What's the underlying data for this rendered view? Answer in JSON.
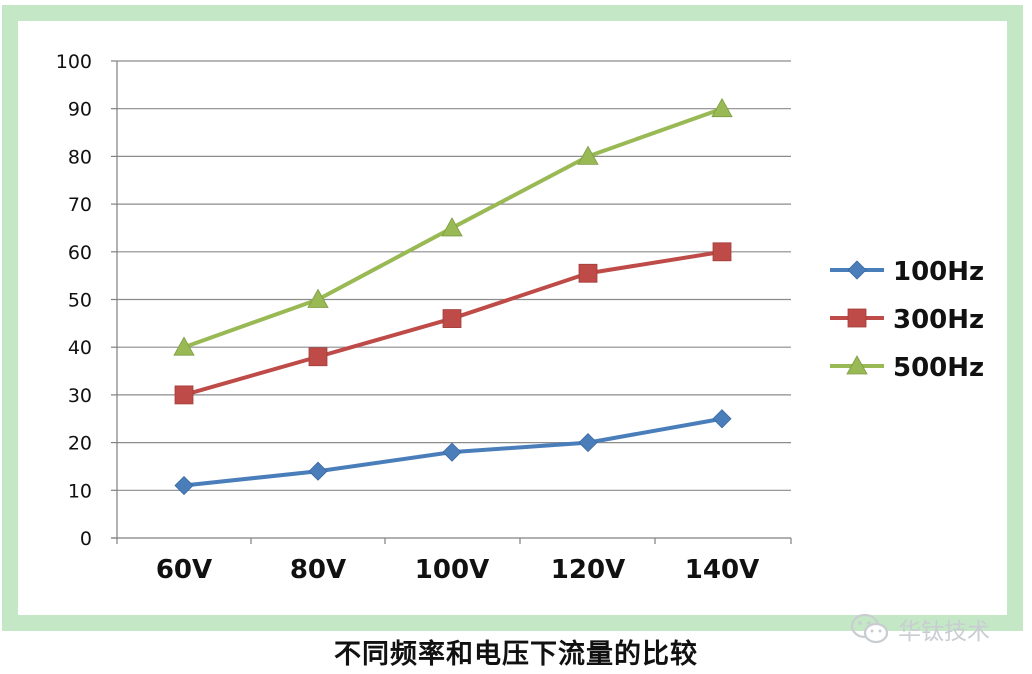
{
  "chart_data": {
    "type": "line",
    "title": "",
    "xlabel": "",
    "ylabel": "",
    "categories": [
      "60V",
      "80V",
      "100V",
      "120V",
      "140V"
    ],
    "ylim": [
      0,
      100
    ],
    "yticks": [
      0,
      10,
      20,
      30,
      40,
      50,
      60,
      70,
      80,
      90,
      100
    ],
    "grid": true,
    "legend_position": "right",
    "series": [
      {
        "name": "100Hz",
        "values": [
          11,
          14,
          18,
          20,
          25
        ],
        "color": "#4a7ebb",
        "marker": "diamond"
      },
      {
        "name": "300Hz",
        "values": [
          30,
          38,
          46,
          55.5,
          60
        ],
        "color": "#be4b48",
        "marker": "square"
      },
      {
        "name": "500Hz",
        "values": [
          40,
          50,
          65,
          80,
          90
        ],
        "color": "#98b954",
        "marker": "triangle"
      }
    ]
  },
  "colors": {
    "frame_border": "#c4e8c6",
    "gridline": "#8c8c8c"
  },
  "caption": "不同频率和电压下流量的比较",
  "watermark": {
    "text": "华钛技术",
    "icon": "wechat-icon"
  }
}
